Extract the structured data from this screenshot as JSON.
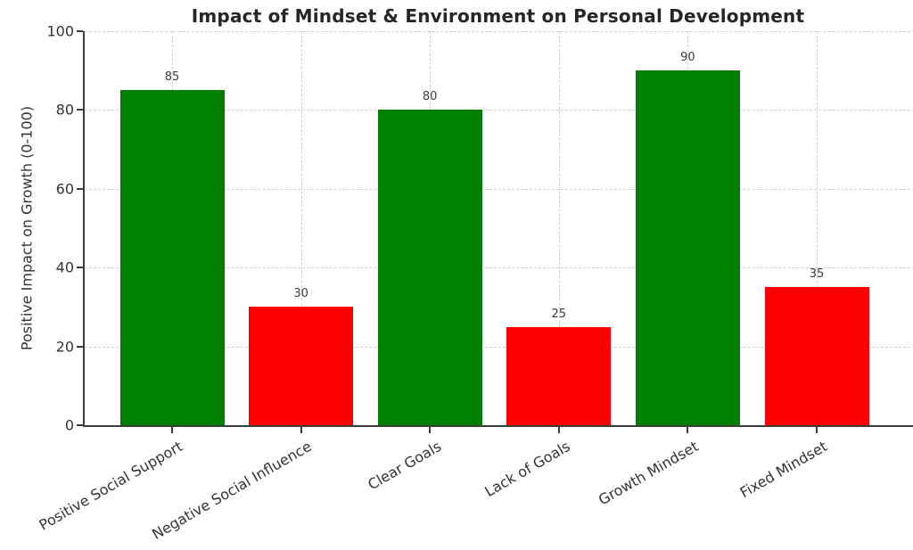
{
  "chart_data": {
    "type": "bar",
    "title": "Impact of Mindset & Environment on Personal Development",
    "xlabel": "",
    "ylabel": "Positive Impact on Growth (0-100)",
    "categories": [
      "Positive Social Support",
      "Negative Social Influence",
      "Clear Goals",
      "Lack of Goals",
      "Growth Mindset",
      "Fixed Mindset"
    ],
    "values": [
      85,
      30,
      80,
      25,
      90,
      35
    ],
    "bar_colors": [
      "#008000",
      "#ff0000",
      "#008000",
      "#ff0000",
      "#008000",
      "#ff0000"
    ],
    "value_labels": [
      "85",
      "30",
      "80",
      "25",
      "90",
      "35"
    ],
    "ylim": [
      0,
      100
    ],
    "yticks": [
      0,
      20,
      40,
      60,
      80,
      100
    ],
    "grid": "dashed horizontal at yticks and dashed vertical at bar centers",
    "legend": "none",
    "x_tick_rotation_degrees": 30
  },
  "colors": {
    "positive_bar": "#008000",
    "negative_bar": "#ff0000",
    "grid_line": "#cfcfcf",
    "axis_line": "#3c3c3c",
    "text": "#333333",
    "title_text": "#262626",
    "background": "#ffffff"
  }
}
